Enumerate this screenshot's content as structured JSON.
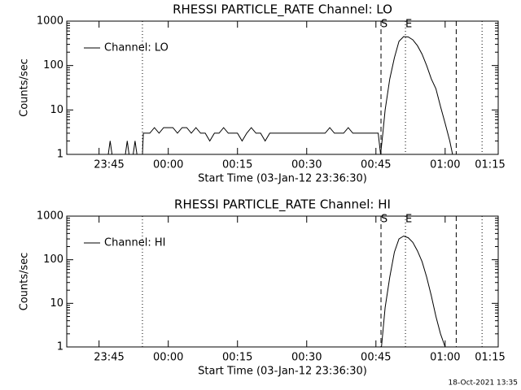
{
  "chart_data": [
    {
      "type": "line",
      "title": "RHESSI PARTICLE_RATE Channel: LO",
      "xlabel": "Start Time (03-Jan-12 23:36:30)",
      "ylabel": "Counts/sec",
      "yscale": "log",
      "ylim": [
        1,
        1000
      ],
      "yticks": [
        1,
        10,
        100,
        1000
      ],
      "xlim": [
        -22,
        71.5
      ],
      "xticks": [
        {
          "value": -15,
          "label": "23:45"
        },
        {
          "value": 0,
          "label": "00:00"
        },
        {
          "value": 15,
          "label": "00:15"
        },
        {
          "value": 30,
          "label": "00:30"
        },
        {
          "value": 45,
          "label": "00:45"
        },
        {
          "value": 60,
          "label": "01:00"
        },
        {
          "value": 75,
          "label": "01:15"
        }
      ],
      "legend": "upper left",
      "vlines": [
        {
          "x": -5.6,
          "style": "dotted"
        },
        {
          "x": 46.1,
          "style": "dashed"
        },
        {
          "x": 51.4,
          "style": "dotted"
        },
        {
          "x": 62.4,
          "style": "dashed"
        },
        {
          "x": 68,
          "style": "dotted"
        }
      ],
      "annotations": [
        {
          "label": "S",
          "x": 46.1
        },
        {
          "label": "E",
          "x": 51.4
        }
      ],
      "series": [
        {
          "name": "Channel: LO",
          "color": "#000000",
          "x": [
            -22,
            -13,
            -12.6,
            -12.2,
            -11.8,
            -10,
            -9.3,
            -8.9,
            -8.5,
            -7.6,
            -7.2,
            -6.8,
            -5.6,
            -5.4,
            -5,
            -4,
            -3,
            -2,
            -1,
            0,
            1,
            2,
            3,
            4,
            5,
            6,
            7,
            8,
            9,
            10,
            11,
            12,
            13,
            14,
            15,
            16,
            17,
            18,
            19,
            20,
            21,
            22,
            23,
            24,
            25,
            26,
            27,
            28,
            29,
            30,
            31,
            32,
            33,
            34,
            35,
            36,
            37,
            38,
            39,
            40,
            41,
            42,
            43,
            44,
            45,
            45.5,
            46,
            46.5,
            47,
            48,
            49,
            50,
            51,
            52,
            53,
            54,
            55,
            56,
            57,
            58,
            59,
            60,
            61,
            61.6
          ],
          "values": [
            1,
            1,
            2,
            1,
            1,
            1,
            1,
            2,
            1,
            1,
            2,
            1,
            1,
            3,
            3,
            3,
            4,
            3,
            4,
            4,
            4,
            3,
            4,
            4,
            3,
            4,
            3,
            3,
            2,
            3,
            3,
            4,
            3,
            3,
            3,
            2,
            3,
            4,
            3,
            3,
            2,
            3,
            3,
            3,
            3,
            3,
            3,
            3,
            3,
            3,
            3,
            3,
            3,
            3,
            4,
            3,
            3,
            3,
            4,
            3,
            3,
            3,
            3,
            3,
            3,
            3,
            1,
            3,
            10,
            50,
            150,
            350,
            450,
            440,
            380,
            280,
            180,
            100,
            50,
            30,
            12,
            5,
            2,
            1
          ]
        }
      ]
    },
    {
      "type": "line",
      "title": "RHESSI PARTICLE_RATE Channel: HI",
      "xlabel": "Start Time (03-Jan-12 23:36:30)",
      "ylabel": "Counts/sec",
      "yscale": "log",
      "ylim": [
        1,
        1000
      ],
      "yticks": [
        1,
        10,
        100,
        1000
      ],
      "xlim": [
        -22,
        71.5
      ],
      "xticks": [
        {
          "value": -15,
          "label": "23:45"
        },
        {
          "value": 0,
          "label": "00:00"
        },
        {
          "value": 15,
          "label": "00:15"
        },
        {
          "value": 30,
          "label": "00:30"
        },
        {
          "value": 45,
          "label": "00:45"
        },
        {
          "value": 60,
          "label": "01:00"
        },
        {
          "value": 75,
          "label": "01:15"
        }
      ],
      "legend": "upper left",
      "vlines": [
        {
          "x": -5.6,
          "style": "dotted"
        },
        {
          "x": 46.1,
          "style": "dashed"
        },
        {
          "x": 51.4,
          "style": "dotted"
        },
        {
          "x": 62.4,
          "style": "dashed"
        },
        {
          "x": 68,
          "style": "dotted"
        }
      ],
      "annotations": [
        {
          "label": "S",
          "x": 46.1
        },
        {
          "label": "E",
          "x": 51.4
        }
      ],
      "series": [
        {
          "name": "Channel: HI",
          "color": "#000000",
          "x": [
            46.2,
            47,
            48,
            49,
            50,
            51,
            52,
            53,
            54,
            55,
            56,
            57,
            58,
            59,
            60
          ],
          "values": [
            1,
            8,
            40,
            150,
            300,
            350,
            320,
            250,
            160,
            90,
            40,
            15,
            5,
            2,
            1
          ]
        }
      ]
    }
  ],
  "footer": "18-Oct-2021 13:35"
}
